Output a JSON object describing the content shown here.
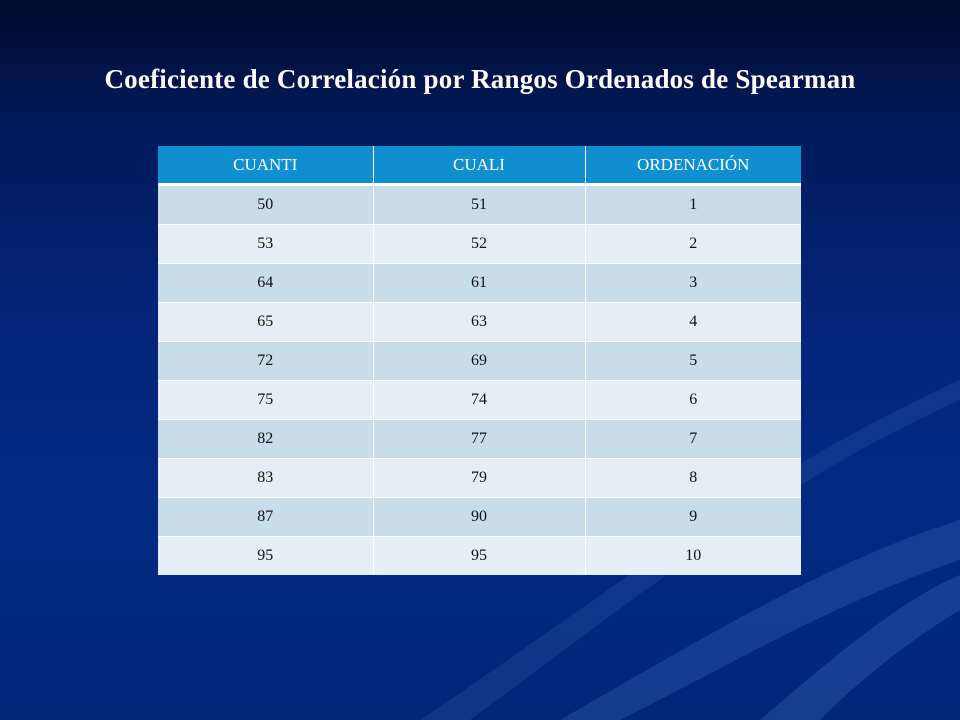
{
  "slide": {
    "title": "Coeficiente de Correlación por Rangos Ordenados de Spearman"
  },
  "table": {
    "headers": [
      "CUANTI",
      "CUALI",
      "ORDENACIÓN"
    ],
    "rows": [
      [
        "50",
        "51",
        "1"
      ],
      [
        "53",
        "52",
        "2"
      ],
      [
        "64",
        "61",
        "3"
      ],
      [
        "65",
        "63",
        "4"
      ],
      [
        "72",
        "69",
        "5"
      ],
      [
        "75",
        "74",
        "6"
      ],
      [
        "82",
        "77",
        "7"
      ],
      [
        "83",
        "79",
        "8"
      ],
      [
        "87",
        "90",
        "9"
      ],
      [
        "95",
        "95",
        "10"
      ]
    ]
  },
  "colors": {
    "header_bg": "#0f8fd0",
    "row_dark": "#c8dcea",
    "row_light": "#e4eef6",
    "background": "#03267a"
  }
}
